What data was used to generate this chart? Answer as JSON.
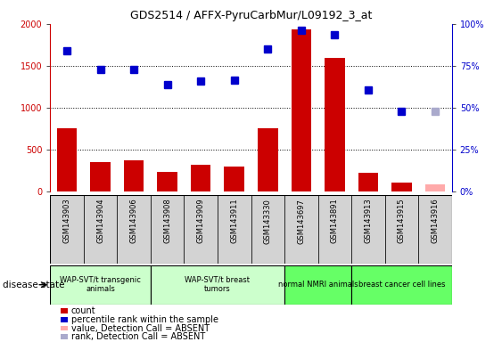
{
  "title": "GDS2514 / AFFX-PyruCarbMur/L09192_3_at",
  "samples": [
    "GSM143903",
    "GSM143904",
    "GSM143906",
    "GSM143908",
    "GSM143909",
    "GSM143911",
    "GSM143330",
    "GSM143697",
    "GSM143891",
    "GSM143913",
    "GSM143915",
    "GSM143916"
  ],
  "count_values": [
    750,
    350,
    370,
    230,
    320,
    300,
    760,
    1930,
    1600,
    225,
    110,
    null
  ],
  "count_absent": [
    null,
    null,
    null,
    null,
    null,
    null,
    null,
    null,
    null,
    null,
    null,
    90
  ],
  "rank_values": [
    1680,
    1460,
    1460,
    1280,
    1320,
    1330,
    1700,
    1920,
    1870,
    1210,
    960,
    null
  ],
  "rank_absent": [
    null,
    null,
    null,
    null,
    null,
    null,
    null,
    null,
    null,
    null,
    null,
    960
  ],
  "count_color": "#cc0000",
  "count_absent_color": "#ffaaaa",
  "rank_color": "#0000cc",
  "rank_absent_color": "#aaaacc",
  "ylim_left": [
    0,
    2000
  ],
  "ylim_right": [
    0,
    100
  ],
  "yticks_left": [
    0,
    500,
    1000,
    1500,
    2000
  ],
  "yticks_left_labels": [
    "0",
    "500",
    "1000",
    "1500",
    "2000"
  ],
  "yticks_right_labels": [
    "0%",
    "25%",
    "50%",
    "75%",
    "100%"
  ],
  "groups": [
    {
      "label": "WAP-SVT/t transgenic\nanimals",
      "start": 0,
      "end": 3,
      "color": "#ccffcc"
    },
    {
      "label": "WAP-SVT/t breast\ntumors",
      "start": 3,
      "end": 7,
      "color": "#ccffcc"
    },
    {
      "label": "normal NMRI animals",
      "start": 7,
      "end": 9,
      "color": "#66ff66"
    },
    {
      "label": "breast cancer cell lines",
      "start": 9,
      "end": 12,
      "color": "#66ff66"
    }
  ],
  "disease_state_label": "disease state",
  "legend_items": [
    {
      "label": "count",
      "color": "#cc0000"
    },
    {
      "label": "percentile rank within the sample",
      "color": "#0000cc"
    },
    {
      "label": "value, Detection Call = ABSENT",
      "color": "#ffaaaa"
    },
    {
      "label": "rank, Detection Call = ABSENT",
      "color": "#aaaacc"
    }
  ],
  "bar_width": 0.6,
  "rank_marker_size": 6,
  "bg_color": "#ffffff",
  "sample_cell_color": "#d3d3d3",
  "grid_line_color": "#000000",
  "title_fontsize": 9,
  "tick_fontsize": 7,
  "label_fontsize": 7,
  "legend_fontsize": 7
}
